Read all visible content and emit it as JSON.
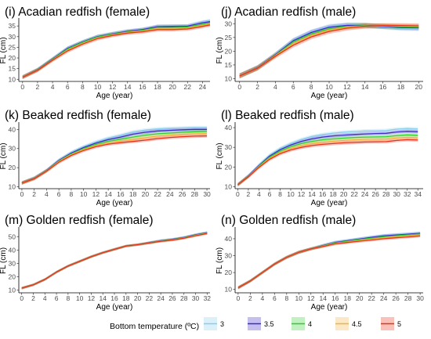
{
  "legend": {
    "title": "Bottom temperature (ºC)",
    "entries": [
      {
        "label": "3",
        "color": "#87CEEB"
      },
      {
        "label": "3.5",
        "color": "#3B2BC8"
      },
      {
        "label": "4",
        "color": "#33CC33"
      },
      {
        "label": "4.5",
        "color": "#F2B441"
      },
      {
        "label": "5",
        "color": "#E8341C"
      }
    ]
  },
  "chart_data": [
    {
      "type": "line",
      "title": "(i) Acadian redfish (female)",
      "xlabel": "Age (year)",
      "ylabel": "FL (cm)",
      "xlim": [
        -0.5,
        25
      ],
      "ylim": [
        9,
        38
      ],
      "xticks": [
        0,
        2,
        4,
        6,
        8,
        10,
        12,
        14,
        16,
        18,
        20,
        22,
        24
      ],
      "yticks": [
        10,
        15,
        20,
        25,
        30,
        35
      ],
      "x": [
        0,
        2,
        4,
        6,
        8,
        10,
        12,
        14,
        16,
        18,
        20,
        22,
        24,
        25
      ],
      "series": [
        {
          "name": "3",
          "values": [
            11,
            14.5,
            19.5,
            24.5,
            27.5,
            30,
            31.3,
            32.5,
            33.3,
            34.8,
            34.9,
            35,
            36.8,
            37.5
          ]
        },
        {
          "name": "3.5",
          "values": [
            11,
            14.5,
            19.5,
            24.5,
            27.5,
            30,
            31.3,
            32.5,
            33.3,
            34.7,
            34.8,
            34.9,
            36.5,
            37
          ]
        },
        {
          "name": "4",
          "values": [
            11,
            14.4,
            19.3,
            24.2,
            27.3,
            29.8,
            31.1,
            32.2,
            33,
            34.3,
            34.3,
            34.5,
            35.8,
            36.5
          ]
        },
        {
          "name": "4.5",
          "values": [
            11,
            14.3,
            19.1,
            23.7,
            26.8,
            29.4,
            30.8,
            32,
            32.6,
            33.8,
            33.8,
            34,
            35.3,
            36
          ]
        },
        {
          "name": "5",
          "values": [
            11,
            14.2,
            19,
            23.3,
            26.5,
            29.1,
            30.6,
            31.7,
            32.3,
            33.3,
            33.3,
            33.6,
            34.8,
            35.5
          ]
        }
      ]
    },
    {
      "type": "line",
      "title": "(j) Acadian redfish (male)",
      "xlabel": "Age (year)",
      "ylabel": "FL (cm)",
      "xlim": [
        -0.5,
        20.5
      ],
      "ylim": [
        9,
        31.5
      ],
      "xticks": [
        0,
        2,
        4,
        6,
        8,
        10,
        12,
        14,
        16,
        18,
        20
      ],
      "yticks": [
        10,
        15,
        20,
        25,
        30
      ],
      "x": [
        0,
        2,
        4,
        6,
        8,
        10,
        12,
        14,
        16,
        18,
        20
      ],
      "series": [
        {
          "name": "3",
          "values": [
            11,
            14,
            18.7,
            24,
            27,
            29,
            29.6,
            29.5,
            28.8,
            28.3,
            28.2
          ]
        },
        {
          "name": "3.5",
          "values": [
            11,
            14,
            18.7,
            23.8,
            26.8,
            28.7,
            29.4,
            29.4,
            29,
            28.6,
            28.5
          ]
        },
        {
          "name": "4",
          "values": [
            11,
            13.9,
            18.5,
            23.4,
            26.3,
            28.2,
            29,
            29.3,
            29.1,
            28.9,
            28.8
          ]
        },
        {
          "name": "4.5",
          "values": [
            11,
            13.9,
            18.4,
            22.8,
            25.7,
            27.7,
            28.7,
            29.2,
            29.2,
            29.1,
            29
          ]
        },
        {
          "name": "5",
          "values": [
            11,
            13.8,
            18.2,
            22.2,
            25.2,
            27.2,
            28.4,
            29.1,
            29.3,
            29.3,
            29.2
          ]
        }
      ]
    },
    {
      "type": "line",
      "title": "(k) Beaked redfish (female)",
      "xlabel": "Age (year)",
      "ylabel": "FL (cm)",
      "xlim": [
        -0.5,
        30.5
      ],
      "ylim": [
        9,
        43
      ],
      "xticks": [
        0,
        2,
        4,
        6,
        8,
        10,
        12,
        14,
        16,
        18,
        20,
        22,
        24,
        26,
        28,
        30
      ],
      "yticks": [
        10,
        20,
        30,
        40
      ],
      "x": [
        0,
        2,
        4,
        6,
        8,
        10,
        12,
        14,
        16,
        18,
        20,
        22,
        24,
        26,
        28,
        30
      ],
      "series": [
        {
          "name": "3",
          "values": [
            12,
            14.5,
            18.5,
            24,
            28,
            31,
            33.5,
            35.5,
            37,
            38.7,
            39.7,
            40.3,
            40.6,
            40.8,
            41,
            41
          ]
        },
        {
          "name": "3.5",
          "values": [
            12,
            14.5,
            18.5,
            23.8,
            27.6,
            30.5,
            32.9,
            34.7,
            36,
            37.5,
            38.5,
            39.2,
            39.5,
            39.8,
            40,
            40
          ]
        },
        {
          "name": "4",
          "values": [
            12,
            14.4,
            18.4,
            23.5,
            27.2,
            30,
            32.2,
            33.8,
            34.9,
            36,
            37,
            37.7,
            38.1,
            38.5,
            38.8,
            38.9
          ]
        },
        {
          "name": "4.5",
          "values": [
            12,
            14.3,
            18.3,
            23.2,
            26.8,
            29.5,
            31.6,
            33,
            34,
            34.8,
            35.7,
            36.5,
            37,
            37.4,
            37.7,
            37.8
          ]
        },
        {
          "name": "5",
          "values": [
            12,
            14.2,
            18.2,
            22.9,
            26.4,
            29,
            31,
            32.3,
            33.1,
            33.7,
            34.4,
            35.2,
            35.8,
            36.2,
            36.5,
            36.6
          ]
        }
      ]
    },
    {
      "type": "line",
      "title": "(l) Beaked redfish (male)",
      "xlabel": "Age (year)",
      "ylabel": "FL (cm)",
      "xlim": [
        -0.5,
        35
      ],
      "ylim": [
        9,
        42
      ],
      "xticks": [
        0,
        2,
        4,
        6,
        8,
        10,
        12,
        14,
        16,
        18,
        20,
        22,
        24,
        26,
        28,
        30,
        32,
        34
      ],
      "yticks": [
        10,
        20,
        30,
        40
      ],
      "x": [
        0,
        2,
        4,
        6,
        8,
        10,
        12,
        14,
        16,
        18,
        20,
        22,
        24,
        26,
        28,
        30,
        32,
        34
      ],
      "series": [
        {
          "name": "3",
          "values": [
            11,
            15.5,
            21,
            26,
            29.5,
            32,
            34,
            35.5,
            36.5,
            37.2,
            37.7,
            38,
            38.3,
            38.4,
            38.5,
            39.2,
            39.5,
            39.3
          ]
        },
        {
          "name": "3.5",
          "values": [
            11,
            15.4,
            20.7,
            25.5,
            28.8,
            31.2,
            33,
            34.3,
            35.2,
            35.8,
            36.2,
            36.5,
            36.8,
            37,
            37.1,
            37.8,
            38.1,
            37.9
          ]
        },
        {
          "name": "4",
          "values": [
            11,
            15.3,
            20.4,
            25,
            28.1,
            30.3,
            31.9,
            33,
            33.8,
            34.3,
            34.7,
            35,
            35.2,
            35.3,
            35.4,
            36,
            36.3,
            36.1
          ]
        },
        {
          "name": "4.5",
          "values": [
            11,
            15.2,
            20.1,
            24.4,
            27.4,
            29.5,
            30.9,
            32,
            32.6,
            33.1,
            33.5,
            33.8,
            34,
            34.1,
            34.2,
            34.8,
            35.1,
            34.9
          ]
        },
        {
          "name": "5",
          "values": [
            11,
            15.1,
            19.8,
            23.9,
            26.8,
            28.7,
            30,
            30.9,
            31.5,
            31.9,
            32.3,
            32.5,
            32.7,
            32.8,
            32.9,
            33.5,
            33.9,
            33.7
          ]
        }
      ]
    },
    {
      "type": "line",
      "title": "(m) Golden redfish (female)",
      "xlabel": "Age (year)",
      "ylabel": "FL (cm)",
      "xlim": [
        -0.5,
        32.5
      ],
      "ylim": [
        8,
        56
      ],
      "xticks": [
        0,
        2,
        4,
        6,
        8,
        10,
        12,
        14,
        16,
        18,
        20,
        22,
        24,
        26,
        28,
        30,
        32
      ],
      "yticks": [
        10,
        20,
        30,
        40,
        50
      ],
      "x": [
        0,
        2,
        4,
        6,
        8,
        10,
        12,
        14,
        16,
        18,
        20,
        22,
        24,
        26,
        28,
        30,
        32
      ],
      "series": [
        {
          "name": "3",
          "values": [
            11.5,
            14,
            18,
            23.5,
            28,
            31.5,
            35,
            38,
            40.5,
            43,
            44,
            45.5,
            47,
            48,
            49.5,
            51.5,
            53.2
          ]
        },
        {
          "name": "3.5",
          "values": [
            11.5,
            14,
            18,
            23.5,
            28,
            31.5,
            35,
            38,
            40.5,
            43,
            44,
            45.5,
            47,
            48,
            49.4,
            51.4,
            53
          ]
        },
        {
          "name": "4",
          "values": [
            11.5,
            14,
            18,
            23.5,
            28,
            31.5,
            35,
            38,
            40.5,
            43,
            44,
            45.4,
            46.8,
            47.8,
            49.2,
            51.1,
            52.8
          ]
        },
        {
          "name": "4.5",
          "values": [
            11.5,
            14,
            18,
            23.5,
            28,
            31.5,
            35,
            38,
            40.5,
            43,
            44,
            45.3,
            46.7,
            47.6,
            49,
            50.9,
            52.5
          ]
        },
        {
          "name": "5",
          "values": [
            11.5,
            14,
            18,
            23.5,
            28,
            31.5,
            35,
            38,
            40.5,
            43,
            44,
            45.2,
            46.5,
            47.4,
            48.8,
            50.7,
            52.3
          ]
        }
      ]
    },
    {
      "type": "line",
      "title": "(n) Golden redfish (male)",
      "xlabel": "Age (year)",
      "ylabel": "FL (cm)",
      "xlim": [
        -0.5,
        30.5
      ],
      "ylim": [
        8,
        46
      ],
      "xticks": [
        0,
        2,
        4,
        6,
        8,
        10,
        12,
        14,
        16,
        18,
        20,
        22,
        24,
        26,
        28,
        30
      ],
      "yticks": [
        10,
        20,
        30,
        40
      ],
      "x": [
        0,
        2,
        4,
        6,
        8,
        10,
        12,
        14,
        16,
        18,
        20,
        22,
        24,
        26,
        28,
        30
      ],
      "series": [
        {
          "name": "3",
          "values": [
            11,
            15,
            20,
            25,
            29,
            32,
            34,
            36,
            38,
            39,
            40,
            41,
            42,
            42.5,
            43,
            43.5
          ]
        },
        {
          "name": "3.5",
          "values": [
            11,
            15,
            20,
            25,
            29,
            32,
            34,
            36,
            37.8,
            38.8,
            39.8,
            40.8,
            41.7,
            42.2,
            42.7,
            43.2
          ]
        },
        {
          "name": "4",
          "values": [
            11,
            15,
            20,
            25,
            29,
            32,
            34,
            35.8,
            37.5,
            38.5,
            39.5,
            40.4,
            41.2,
            41.8,
            42.3,
            42.8
          ]
        },
        {
          "name": "4.5",
          "values": [
            11,
            15,
            20,
            25,
            29,
            32,
            34,
            35.6,
            37.2,
            38.1,
            39,
            39.8,
            40.6,
            41.2,
            41.7,
            42.3
          ]
        },
        {
          "name": "5",
          "values": [
            11,
            15,
            20,
            25,
            29,
            32,
            34,
            35.5,
            37,
            37.8,
            38.6,
            39.3,
            40,
            40.6,
            41.1,
            41.7
          ]
        }
      ]
    }
  ]
}
